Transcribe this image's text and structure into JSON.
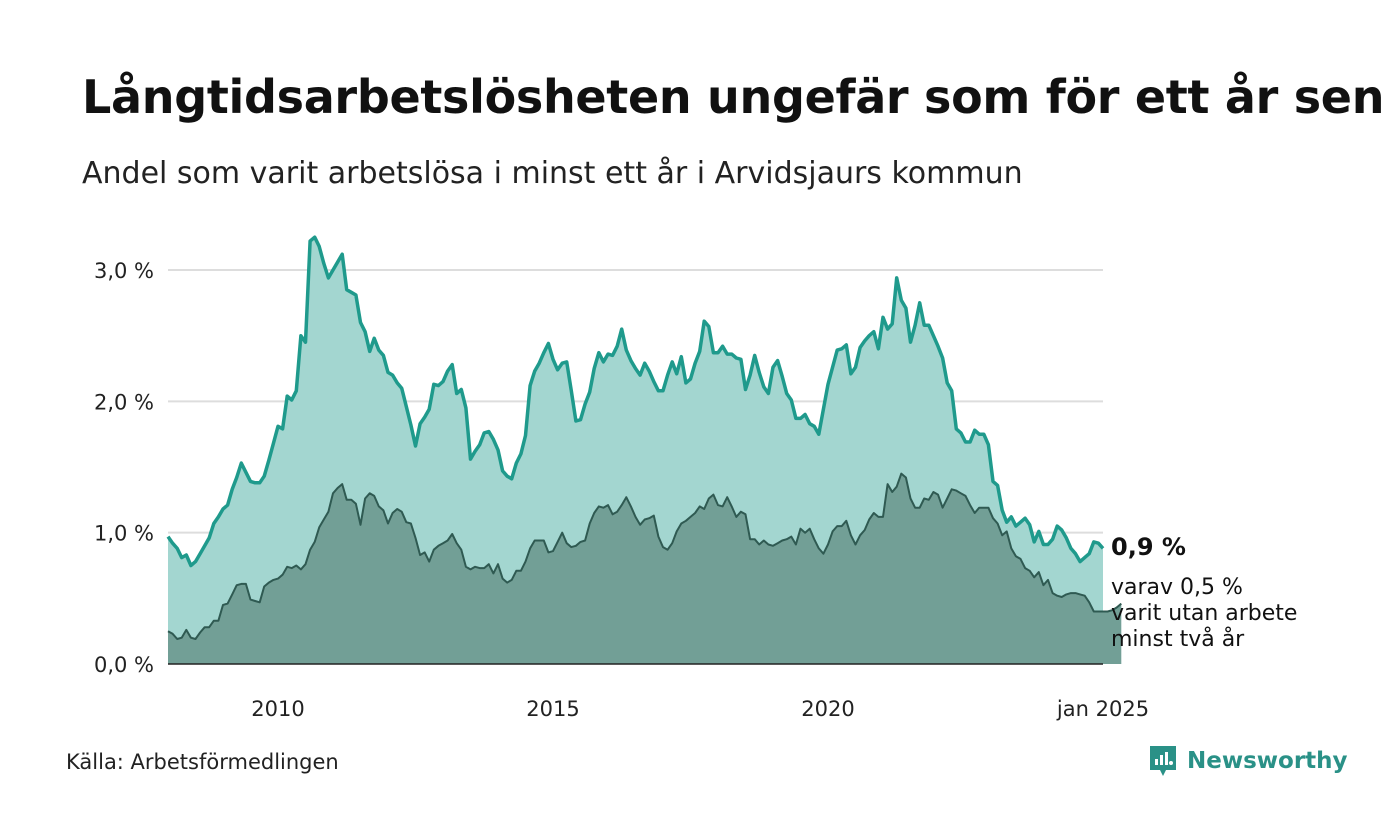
{
  "title": "Långtidsarbetslösheten ungefär som för ett år sen",
  "subtitle": "Andel som varit arbetslösa i minst ett år i Arvidsjaurs kommun",
  "source": "Källa: Arbetsförmedlingen",
  "brand": {
    "name": "Newsworthy",
    "logo_icon": "newsworthy-logo-icon"
  },
  "colors": {
    "total_line": "#1f9a8c",
    "total_fill": "#a3d6d0",
    "long_line": "#2f5a52",
    "long_fill": "#729f96",
    "grid": "#dddddd",
    "brand": "#2a9187"
  },
  "chart_data": {
    "type": "area",
    "x_start": 2008.0,
    "x_step": 0.0833333,
    "xlim": [
      2008.0,
      2025.0
    ],
    "ylim": [
      0,
      3.3
    ],
    "yticks": [
      0,
      1,
      2,
      3
    ],
    "ytick_labels": [
      "0,0 %",
      "1,0 %",
      "2,0 %",
      "3,0 %"
    ],
    "xticks": [
      2010,
      2015,
      2020,
      2025
    ],
    "xtick_labels": [
      "2010",
      "2015",
      "2020",
      "jan 2025"
    ],
    "series": [
      {
        "name": "Arbetslösa minst ett år",
        "values": [
          0.97,
          0.92,
          0.88,
          0.81,
          0.83,
          0.75,
          0.78,
          0.84,
          0.9,
          0.96,
          1.07,
          1.12,
          1.18,
          1.21,
          1.33,
          1.42,
          1.53,
          1.46,
          1.39,
          1.38,
          1.38,
          1.43,
          1.55,
          1.68,
          1.81,
          1.79,
          2.04,
          2.01,
          2.08,
          2.5,
          2.45,
          3.22,
          3.25,
          3.18,
          3.05,
          2.94,
          3.0,
          3.06,
          3.12,
          2.85,
          2.83,
          2.81,
          2.6,
          2.53,
          2.38,
          2.48,
          2.39,
          2.35,
          2.22,
          2.2,
          2.14,
          2.1,
          1.96,
          1.82,
          1.66,
          1.83,
          1.88,
          1.94,
          2.13,
          2.12,
          2.15,
          2.23,
          2.28,
          2.06,
          2.09,
          1.95,
          1.56,
          1.62,
          1.67,
          1.76,
          1.77,
          1.71,
          1.63,
          1.47,
          1.43,
          1.41,
          1.53,
          1.6,
          1.74,
          2.12,
          2.23,
          2.29,
          2.37,
          2.44,
          2.32,
          2.24,
          2.29,
          2.3,
          2.08,
          1.85,
          1.86,
          1.98,
          2.07,
          2.25,
          2.37,
          2.3,
          2.36,
          2.35,
          2.42,
          2.55,
          2.39,
          2.31,
          2.25,
          2.2,
          2.29,
          2.23,
          2.15,
          2.08,
          2.08,
          2.2,
          2.3,
          2.21,
          2.34,
          2.14,
          2.17,
          2.29,
          2.38,
          2.61,
          2.57,
          2.37,
          2.37,
          2.42,
          2.36,
          2.36,
          2.33,
          2.32,
          2.09,
          2.2,
          2.35,
          2.22,
          2.11,
          2.06,
          2.26,
          2.31,
          2.19,
          2.06,
          2.01,
          1.87,
          1.87,
          1.9,
          1.83,
          1.81,
          1.75,
          1.94,
          2.13,
          2.26,
          2.39,
          2.4,
          2.43,
          2.21,
          2.26,
          2.41,
          2.46,
          2.5,
          2.53,
          2.4,
          2.64,
          2.55,
          2.59,
          2.94,
          2.77,
          2.71,
          2.45,
          2.58,
          2.75,
          2.58,
          2.58,
          2.5,
          2.42,
          2.33,
          2.14,
          2.08,
          1.79,
          1.76,
          1.69,
          1.69,
          1.78,
          1.75,
          1.75,
          1.67,
          1.39,
          1.36,
          1.17,
          1.08,
          1.12,
          1.05,
          1.08,
          1.11,
          1.06,
          0.93,
          1.01,
          0.91,
          0.91,
          0.95,
          1.05,
          1.02,
          0.96,
          0.88,
          0.84,
          0.78,
          0.81,
          0.84,
          0.93,
          0.92,
          0.88
        ]
      },
      {
        "name": "varav minst två år",
        "values": [
          0.25,
          0.23,
          0.19,
          0.2,
          0.26,
          0.2,
          0.19,
          0.24,
          0.28,
          0.28,
          0.33,
          0.33,
          0.45,
          0.46,
          0.53,
          0.6,
          0.61,
          0.61,
          0.49,
          0.48,
          0.47,
          0.59,
          0.62,
          0.64,
          0.65,
          0.68,
          0.74,
          0.73,
          0.75,
          0.72,
          0.76,
          0.87,
          0.93,
          1.04,
          1.1,
          1.16,
          1.3,
          1.34,
          1.37,
          1.25,
          1.25,
          1.22,
          1.06,
          1.26,
          1.3,
          1.28,
          1.2,
          1.17,
          1.07,
          1.15,
          1.18,
          1.16,
          1.08,
          1.07,
          0.96,
          0.83,
          0.85,
          0.78,
          0.87,
          0.9,
          0.92,
          0.94,
          0.99,
          0.92,
          0.87,
          0.74,
          0.72,
          0.74,
          0.73,
          0.73,
          0.76,
          0.69,
          0.76,
          0.65,
          0.62,
          0.64,
          0.71,
          0.71,
          0.78,
          0.88,
          0.94,
          0.94,
          0.94,
          0.85,
          0.86,
          0.93,
          1.0,
          0.92,
          0.89,
          0.9,
          0.93,
          0.94,
          1.07,
          1.15,
          1.2,
          1.19,
          1.21,
          1.14,
          1.16,
          1.21,
          1.27,
          1.2,
          1.12,
          1.06,
          1.1,
          1.11,
          1.13,
          0.97,
          0.89,
          0.87,
          0.92,
          1.01,
          1.07,
          1.09,
          1.12,
          1.15,
          1.2,
          1.18,
          1.26,
          1.29,
          1.21,
          1.2,
          1.27,
          1.2,
          1.12,
          1.16,
          1.14,
          0.95,
          0.95,
          0.91,
          0.94,
          0.91,
          0.9,
          0.92,
          0.94,
          0.95,
          0.97,
          0.91,
          1.03,
          1.0,
          1.03,
          0.95,
          0.88,
          0.84,
          0.91,
          1.01,
          1.05,
          1.05,
          1.09,
          0.98,
          0.91,
          0.98,
          1.02,
          1.1,
          1.15,
          1.12,
          1.12,
          1.37,
          1.31,
          1.35,
          1.45,
          1.42,
          1.26,
          1.19,
          1.19,
          1.26,
          1.25,
          1.31,
          1.29,
          1.19,
          1.26,
          1.33,
          1.32,
          1.3,
          1.28,
          1.21,
          1.15,
          1.19,
          1.19,
          1.19,
          1.11,
          1.07,
          0.98,
          1.01,
          0.88,
          0.82,
          0.8,
          0.73,
          0.71,
          0.66,
          0.7,
          0.6,
          0.64,
          0.54,
          0.52,
          0.51,
          0.53,
          0.54,
          0.54,
          0.53,
          0.52,
          0.47,
          0.4,
          0.4,
          0.4,
          0.4,
          0.41,
          0.43,
          0.46
        ]
      }
    ],
    "end_label_total": "0,9 %",
    "end_label_long": [
      "varav 0,5 %",
      "varit utan arbete",
      "minst två år"
    ]
  }
}
